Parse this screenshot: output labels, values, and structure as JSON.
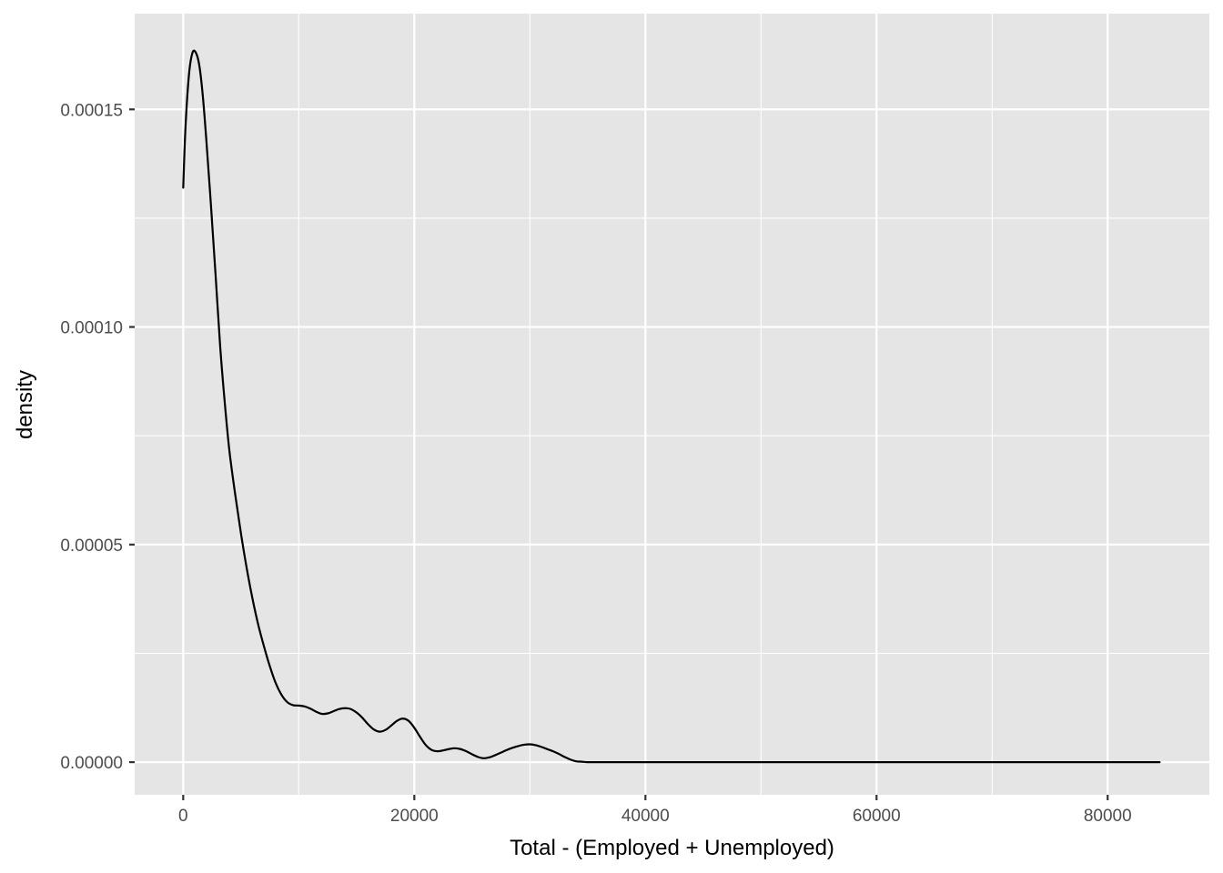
{
  "chart_data": {
    "type": "line",
    "title": "",
    "xlabel": "Total - (Employed + Unemployed)",
    "ylabel": "density",
    "xlim": [
      -4200,
      88800
    ],
    "ylim": [
      -7.5e-06,
      0.000172
    ],
    "x_ticks": [
      0,
      20000,
      40000,
      60000,
      80000
    ],
    "x_tick_labels": [
      "0",
      "20000",
      "40000",
      "60000",
      "80000"
    ],
    "y_ticks": [
      0,
      5e-05,
      0.0001,
      0.00015
    ],
    "y_tick_labels": [
      "0.00000",
      "0.00005",
      "0.00010",
      "0.00015"
    ],
    "grid": true,
    "series": [
      {
        "x": [
          0,
          200,
          500,
          800,
          1100,
          1400,
          1700,
          2000,
          2400,
          2800,
          3200,
          3600,
          4000,
          4500,
          5000,
          5500,
          6000,
          6500,
          7000,
          7500,
          8000,
          8500,
          9000,
          9500,
          10000,
          10500,
          11000,
          11500,
          12000,
          12500,
          13000,
          13500,
          14000,
          14500,
          15000,
          15500,
          16000,
          16500,
          17000,
          17500,
          18000,
          18500,
          19000,
          19500,
          20000,
          20500,
          21000,
          21500,
          22000,
          22500,
          23000,
          23500,
          24000,
          24500,
          25000,
          25500,
          26000,
          26500,
          27000,
          27500,
          28000,
          28500,
          29000,
          29500,
          30000,
          30500,
          31000,
          31500,
          32000,
          32500,
          33000,
          33500,
          34000,
          34500,
          35000,
          35500,
          36000,
          36500,
          37000,
          38000,
          40000,
          45000,
          50000,
          55000,
          55500,
          56000,
          56500,
          57000,
          57500,
          58000,
          58500,
          59000,
          59500,
          60000,
          61000,
          65000,
          70000,
          75000,
          80000,
          81000,
          81500,
          82000,
          82500,
          83000,
          83500,
          84000,
          84500
        ],
        "y": [
          0.000132,
          0.000146,
          0.000158,
          0.000163,
          0.000163,
          0.00016,
          0.000153,
          0.000143,
          0.000128,
          0.000112,
          9.55e-05,
          8.25e-05,
          7.15e-05,
          6.15e-05,
          5.25e-05,
          4.45e-05,
          3.75e-05,
          3.15e-05,
          2.65e-05,
          2.2e-05,
          1.82e-05,
          1.55e-05,
          1.38e-05,
          1.31e-05,
          1.3e-05,
          1.28e-05,
          1.23e-05,
          1.16e-05,
          1.11e-05,
          1.12e-05,
          1.17e-05,
          1.22e-05,
          1.24e-05,
          1.22e-05,
          1.14e-05,
          1.02e-05,
          8.7e-06,
          7.5e-06,
          7e-06,
          7.4e-06,
          8.4e-06,
          9.5e-06,
          1e-05,
          9.5e-06,
          7.9e-06,
          5.8e-06,
          3.9e-06,
          2.8e-06,
          2.5e-06,
          2.7e-06,
          3e-06,
          3.2e-06,
          3e-06,
          2.5e-06,
          1.8e-06,
          1.2e-06,
          9e-07,
          1.1e-06,
          1.6e-06,
          2.2e-06,
          2.8e-06,
          3.3e-06,
          3.7e-06,
          4e-06,
          4.1e-06,
          3.9e-06,
          3.5e-06,
          3e-06,
          2.5e-06,
          1.9e-06,
          1.2e-06,
          6e-07,
          2e-07,
          1e-07,
          0,
          0,
          0,
          0,
          0,
          0,
          0,
          0,
          0,
          0,
          0,
          0,
          0,
          0,
          0,
          0,
          0,
          0,
          0,
          0,
          0,
          0,
          0,
          0,
          0,
          0,
          0,
          0,
          0,
          0,
          0,
          0,
          0
        ]
      }
    ]
  }
}
